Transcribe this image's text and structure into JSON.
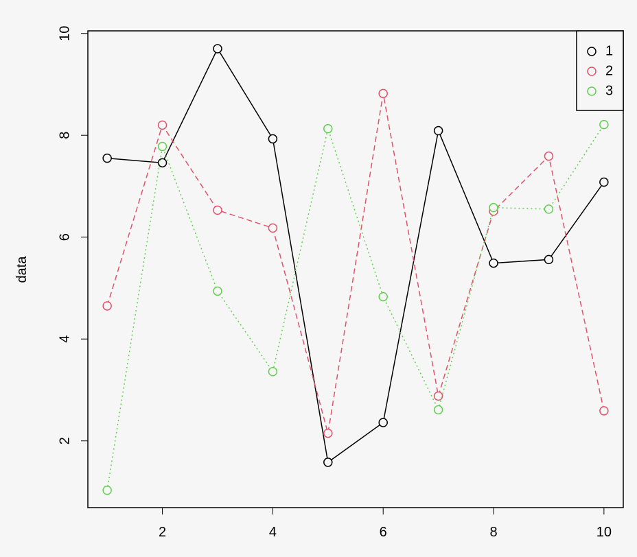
{
  "chart_data": {
    "type": "line",
    "y_label": "data",
    "x": [
      1,
      2,
      3,
      4,
      5,
      6,
      7,
      8,
      9,
      10
    ],
    "series": [
      {
        "name": "1",
        "color": "#000000",
        "dash": "solid",
        "values": [
          7.55,
          7.46,
          9.7,
          7.93,
          1.58,
          2.36,
          8.09,
          5.49,
          5.56,
          7.08
        ]
      },
      {
        "name": "2",
        "color": "#df536b",
        "dash": "dashed",
        "values": [
          4.65,
          8.2,
          6.53,
          6.18,
          2.15,
          8.82,
          2.88,
          6.51,
          7.59,
          2.59
        ]
      },
      {
        "name": "3",
        "color": "#61d04f",
        "dash": "dotted",
        "values": [
          1.03,
          7.78,
          4.94,
          3.36,
          8.13,
          4.83,
          2.61,
          6.58,
          6.55,
          8.21
        ]
      }
    ],
    "xlim": [
      0.65,
      10.35
    ],
    "ylim": [
      0.69,
      10.05
    ],
    "xticks": [
      2,
      4,
      6,
      8,
      10
    ],
    "yticks": [
      2,
      4,
      6,
      8,
      10
    ],
    "legend": "top-right",
    "marker": "open-circle"
  }
}
